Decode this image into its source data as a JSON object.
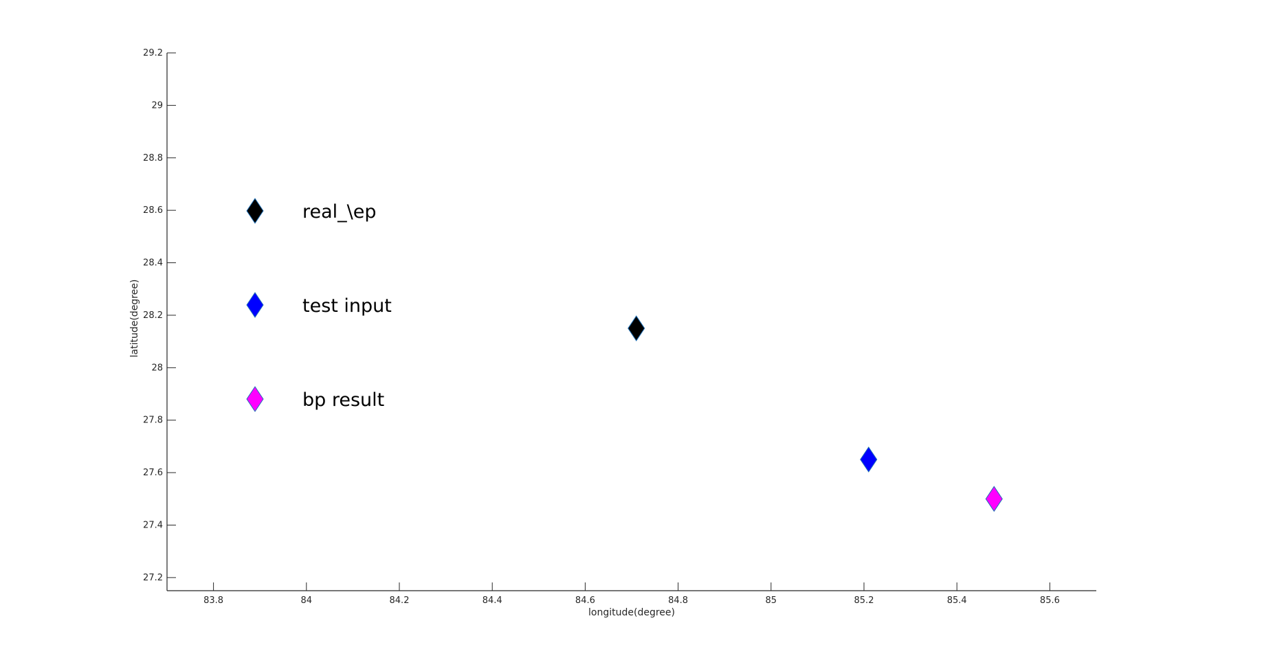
{
  "chart_data": {
    "type": "scatter",
    "title": "",
    "xlabel": "longitude(degree)",
    "ylabel": "latitude(degree)",
    "xlim": [
      83.7,
      85.7
    ],
    "ylim": [
      27.15,
      29.2
    ],
    "xticks": [
      "83.8",
      "84",
      "84.2",
      "84.4",
      "84.6",
      "84.8",
      "85",
      "85.2",
      "85.4",
      "85.6"
    ],
    "yticks": [
      "27.2",
      "27.4",
      "27.6",
      "27.8",
      "28",
      "28.2",
      "28.4",
      "28.6",
      "28.8",
      "29",
      "29.2"
    ],
    "grid": false,
    "legend_position": "upper-left",
    "series": [
      {
        "name": "real_\\ep",
        "color": "#000000",
        "marker": "diamond",
        "points": [
          {
            "x": 84.71,
            "y": 28.15
          }
        ]
      },
      {
        "name": "test input",
        "color": "#0000ff",
        "marker": "diamond",
        "points": [
          {
            "x": 85.21,
            "y": 27.65
          }
        ]
      },
      {
        "name": "bp result",
        "color": "#ff00ff",
        "marker": "diamond",
        "points": [
          {
            "x": 85.48,
            "y": 27.5
          }
        ]
      }
    ]
  }
}
